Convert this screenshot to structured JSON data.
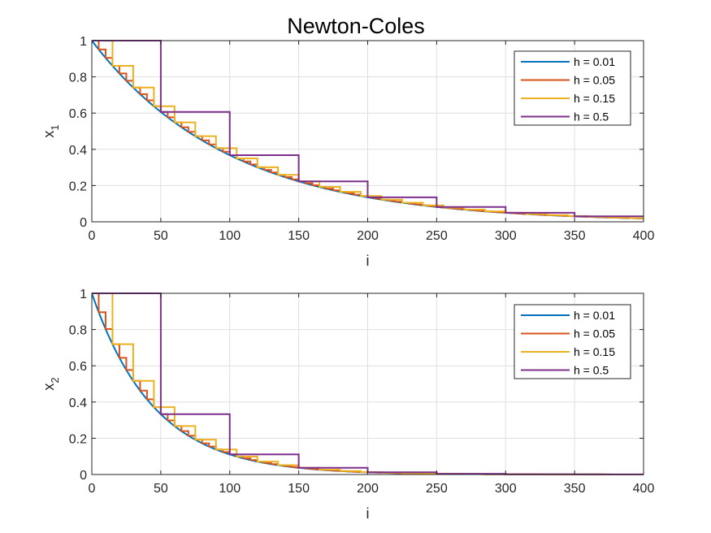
{
  "figure": {
    "title": "Newton-Coles"
  },
  "chart_data": [
    {
      "type": "line",
      "step": true,
      "xlabel": "i",
      "ylabel_base": "x",
      "ylabel_sub": "1",
      "xlim": [
        0,
        400
      ],
      "ylim": [
        0,
        1
      ],
      "xticks": [
        0,
        50,
        100,
        150,
        200,
        250,
        300,
        350,
        400
      ],
      "yticks": [
        0,
        0.2,
        0.4,
        0.6,
        0.8,
        1
      ],
      "ytick_labels": [
        "0",
        "0.2",
        "0.4",
        "0.6",
        "0.8",
        "1"
      ],
      "grid": true,
      "legend_position": "top-right",
      "decay_rate": 0.01,
      "series": [
        {
          "name": "h = 0.01",
          "h": 0.01,
          "color": "#0072BD"
        },
        {
          "name": "h = 0.05",
          "h": 0.05,
          "color": "#D95319"
        },
        {
          "name": "h = 0.15",
          "h": 0.15,
          "color": "#EDB120"
        },
        {
          "name": "h = 0.5",
          "h": 0.5,
          "color": "#7E2F8E"
        }
      ]
    },
    {
      "type": "line",
      "step": true,
      "xlabel": "i",
      "ylabel_base": "x",
      "ylabel_sub": "2",
      "xlim": [
        0,
        400
      ],
      "ylim": [
        0,
        1
      ],
      "xticks": [
        0,
        50,
        100,
        150,
        200,
        250,
        300,
        350,
        400
      ],
      "yticks": [
        0,
        0.2,
        0.4,
        0.6,
        0.8,
        1
      ],
      "ytick_labels": [
        "0",
        "0.2",
        "0.4",
        "0.6",
        "0.8",
        "1"
      ],
      "grid": true,
      "legend_position": "top-right",
      "decay_rate": 0.022,
      "series": [
        {
          "name": "h = 0.01",
          "h": 0.01,
          "color": "#0072BD"
        },
        {
          "name": "h = 0.05",
          "h": 0.05,
          "color": "#D95319"
        },
        {
          "name": "h = 0.15",
          "h": 0.15,
          "color": "#EDB120"
        },
        {
          "name": "h = 0.5",
          "h": 0.5,
          "color": "#7E2F8E"
        }
      ]
    }
  ]
}
